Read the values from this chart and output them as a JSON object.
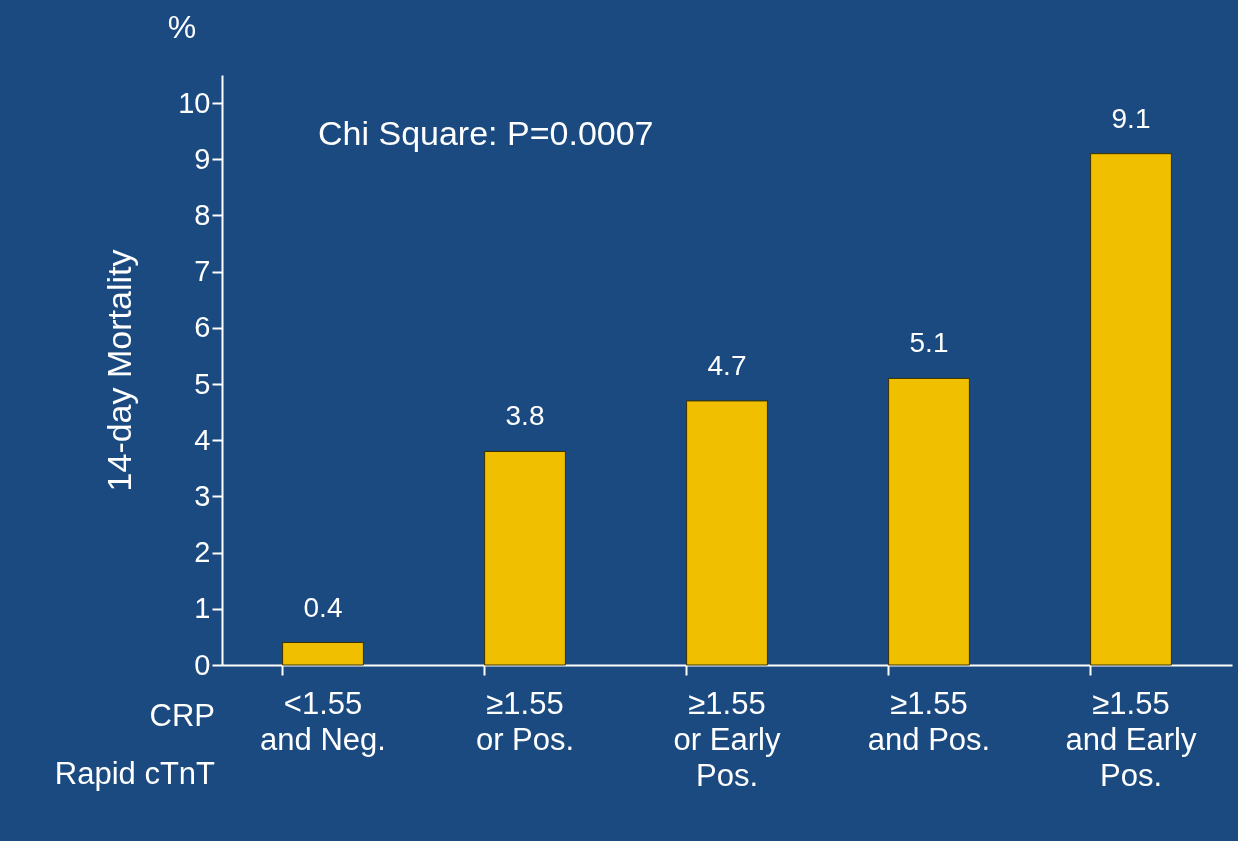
{
  "chart_data": {
    "type": "bar",
    "ylabel": "14-day Mortality",
    "xlabel": "CRP\nRapid cTnT",
    "categories": [
      "<1.55\nand Neg.",
      "≥1.55\nor Pos.",
      "≥1.55\nor Early\nPos.",
      "≥1.55\nand Pos.",
      "≥1.55\nand Early\nPos."
    ],
    "values": [
      0.4,
      3.8,
      4.7,
      5.1,
      9.1
    ],
    "color": "#f0c000",
    "data_labels": true,
    "ylim": [
      0,
      10.5
    ],
    "yticks": [
      0,
      1,
      2,
      3,
      4,
      5,
      6,
      7,
      8,
      9,
      10
    ],
    "grid": false,
    "annotations": [
      "%",
      "Chi Square: P=0.0007"
    ]
  }
}
